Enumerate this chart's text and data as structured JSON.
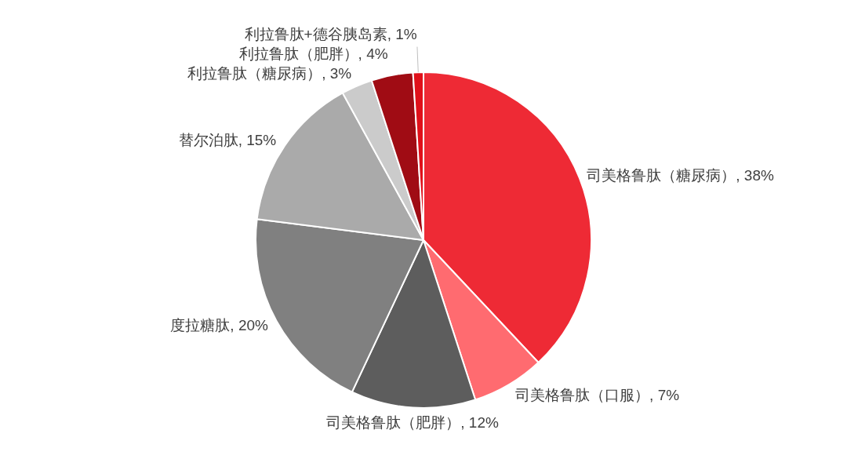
{
  "chart_data": {
    "type": "pie",
    "categories": [
      "司美格鲁肽（糖尿病）",
      "司美格鲁肽（口服）",
      "司美格鲁肽（肥胖）",
      "度拉糖肽",
      "替尔泊肽",
      "利拉鲁肽（糖尿病）",
      "利拉鲁肽（肥胖）",
      "利拉鲁肽+德谷胰岛素"
    ],
    "values": [
      38,
      7,
      12,
      20,
      15,
      3,
      4,
      1
    ],
    "value_labels": [
      "38%",
      "7%",
      "12%",
      "20%",
      "15%",
      "3%",
      "4%",
      "1%"
    ],
    "colors": [
      "#ee2a35",
      "#ff6b70",
      "#5d5d5d",
      "#808080",
      "#aaaaaa",
      "#cbcbcb",
      "#a00c14",
      "#e0101a"
    ]
  }
}
